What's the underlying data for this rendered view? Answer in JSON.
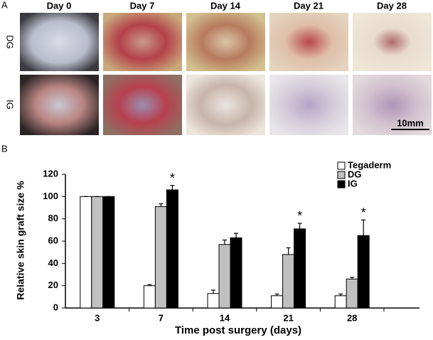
{
  "panel_a": {
    "label": "A",
    "columns": [
      "Day 0",
      "Day 7",
      "Day 14",
      "Day 21",
      "Day 28"
    ],
    "rows": [
      "DG",
      "IG"
    ],
    "scale_bar": "10mm"
  },
  "chart_data": {
    "type": "bar",
    "panel_label": "B",
    "x_label": "Time post surgery (days)",
    "y_label": "Relative skin graft size %",
    "categories": [
      "3",
      "7",
      "14",
      "21",
      "28"
    ],
    "series": [
      {
        "name": "Tegaderm",
        "color": "#ffffff",
        "values": [
          100,
          20,
          13,
          11,
          11
        ],
        "errors": [
          0,
          1,
          3,
          1.5,
          1.5
        ]
      },
      {
        "name": "DG",
        "color": "#c0c0c0",
        "values": [
          100,
          91,
          57,
          48,
          26
        ],
        "errors": [
          0,
          2.5,
          4,
          6,
          1.5
        ]
      },
      {
        "name": "IG",
        "color": "#000000",
        "values": [
          100,
          106,
          63,
          71,
          65
        ],
        "errors": [
          0,
          4,
          4,
          5,
          14
        ],
        "markers": [
          null,
          "*",
          null,
          "*",
          "*"
        ]
      }
    ],
    "ylim": [
      0,
      120
    ],
    "yticks": [
      0,
      20,
      40,
      60,
      80,
      100,
      120
    ],
    "legend": "top-right"
  }
}
